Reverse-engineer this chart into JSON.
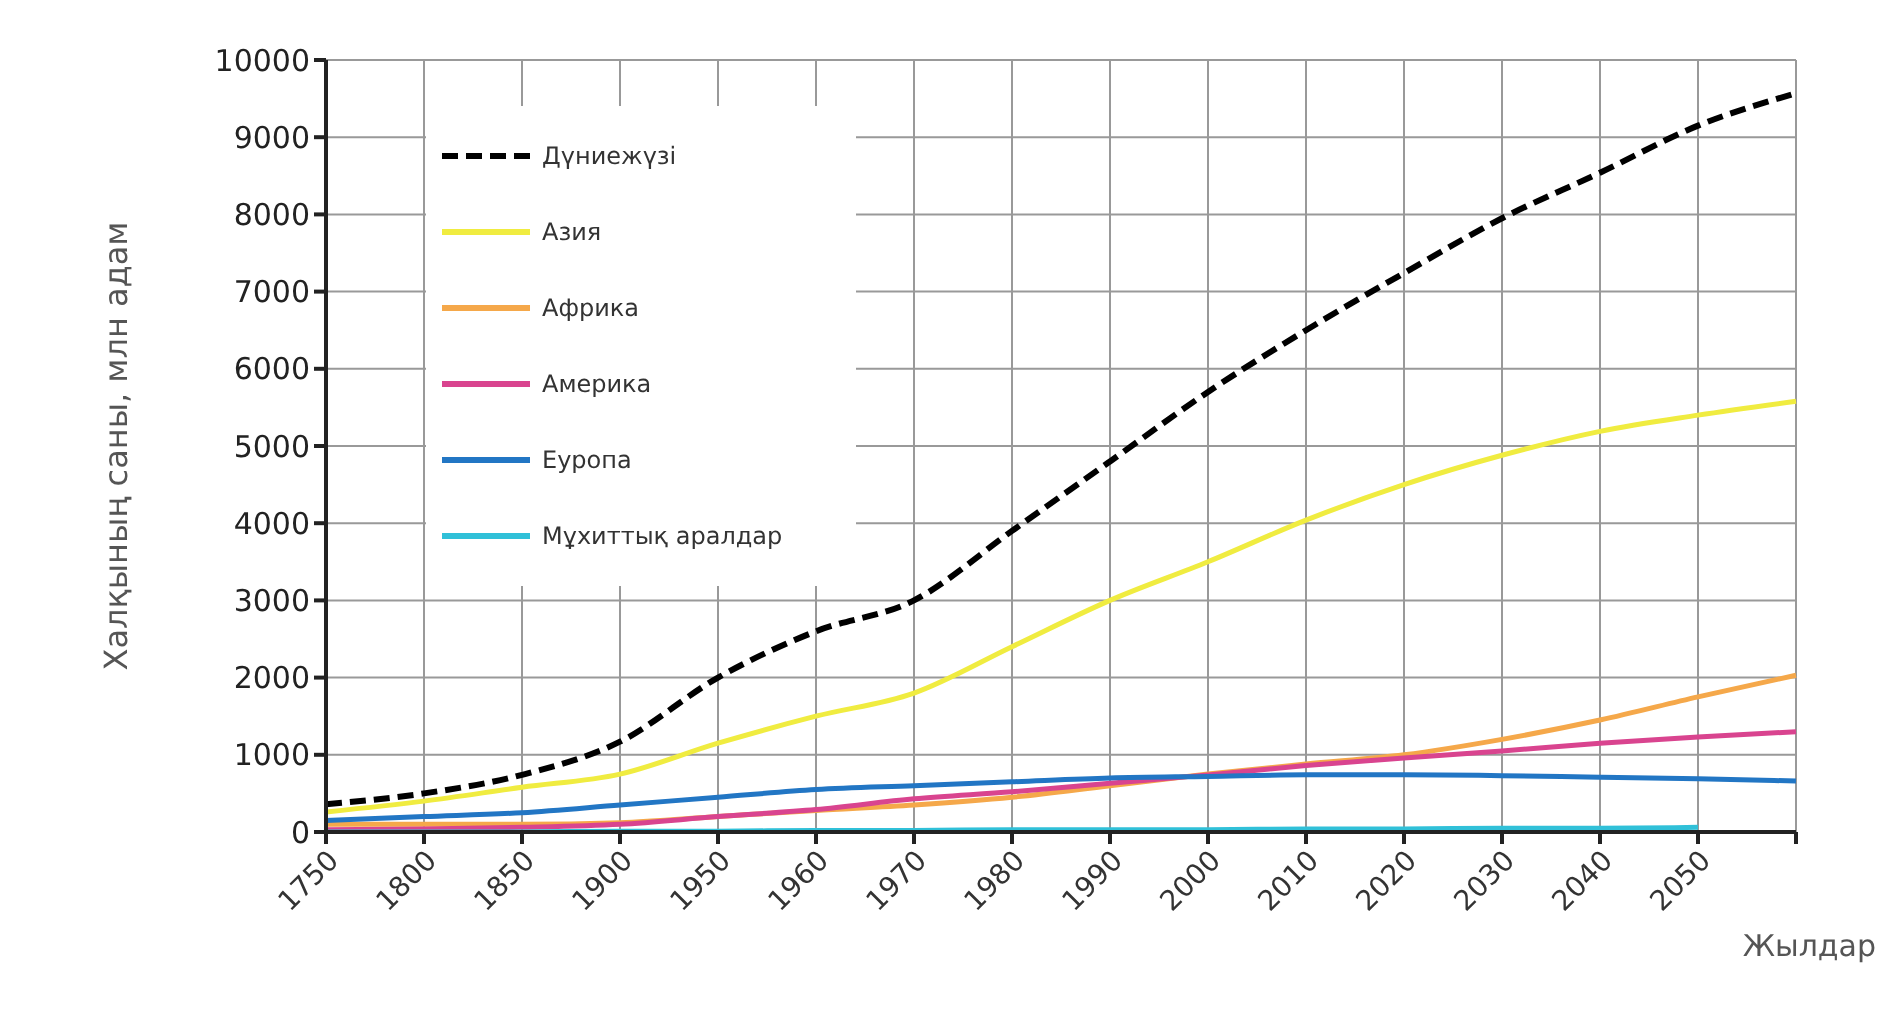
{
  "chart_data": {
    "type": "line",
    "xlabel": "Жылдар",
    "ylabel": "Халқының саны, млн адам",
    "categories": [
      "1750",
      "1800",
      "1850",
      "1900",
      "1950",
      "1960",
      "1970",
      "1980",
      "1990",
      "2000",
      "2010",
      "2020",
      "2030",
      "2040",
      "2050",
      null
    ],
    "ylim": [
      0,
      10000
    ],
    "yticks": [
      0,
      1000,
      2000,
      3000,
      4000,
      5000,
      6000,
      7000,
      8000,
      9000,
      10000
    ],
    "grid": true,
    "legend": "top left",
    "marker": "none",
    "series": [
      {
        "name": "Дүниежүзі",
        "color": "#000000",
        "line_style": "dashed",
        "values": [
          360,
          500,
          740,
          1170,
          2000,
          2600,
          3000,
          3900,
          4800,
          5700,
          6500,
          7240,
          7950,
          8540,
          9150,
          9570
        ]
      },
      {
        "name": "Азия",
        "color": "#f0ec40",
        "values": [
          260,
          400,
          580,
          750,
          1150,
          1500,
          1800,
          2400,
          3000,
          3500,
          4040,
          4500,
          4880,
          5190,
          5400,
          5580
        ]
      },
      {
        "name": "Африка",
        "color": "#f5a84a",
        "values": [
          100,
          100,
          100,
          120,
          200,
          280,
          350,
          450,
          600,
          750,
          880,
          1000,
          1200,
          1450,
          1750,
          2030
        ]
      },
      {
        "name": "Америка",
        "color": "#d9448f",
        "values": [
          30,
          40,
          60,
          100,
          200,
          290,
          430,
          520,
          630,
          740,
          860,
          960,
          1050,
          1150,
          1230,
          1300
        ]
      },
      {
        "name": "Еуропа",
        "color": "#2276c4",
        "values": [
          150,
          200,
          250,
          350,
          450,
          550,
          600,
          650,
          700,
          720,
          740,
          740,
          730,
          710,
          690,
          660
        ]
      },
      {
        "name": "Мұхиттық аралдар",
        "color": "#30c0d8",
        "values": [
          0,
          0,
          0,
          10,
          10,
          20,
          20,
          30,
          30,
          30,
          40,
          40,
          50,
          50,
          60,
          null
        ]
      }
    ]
  }
}
